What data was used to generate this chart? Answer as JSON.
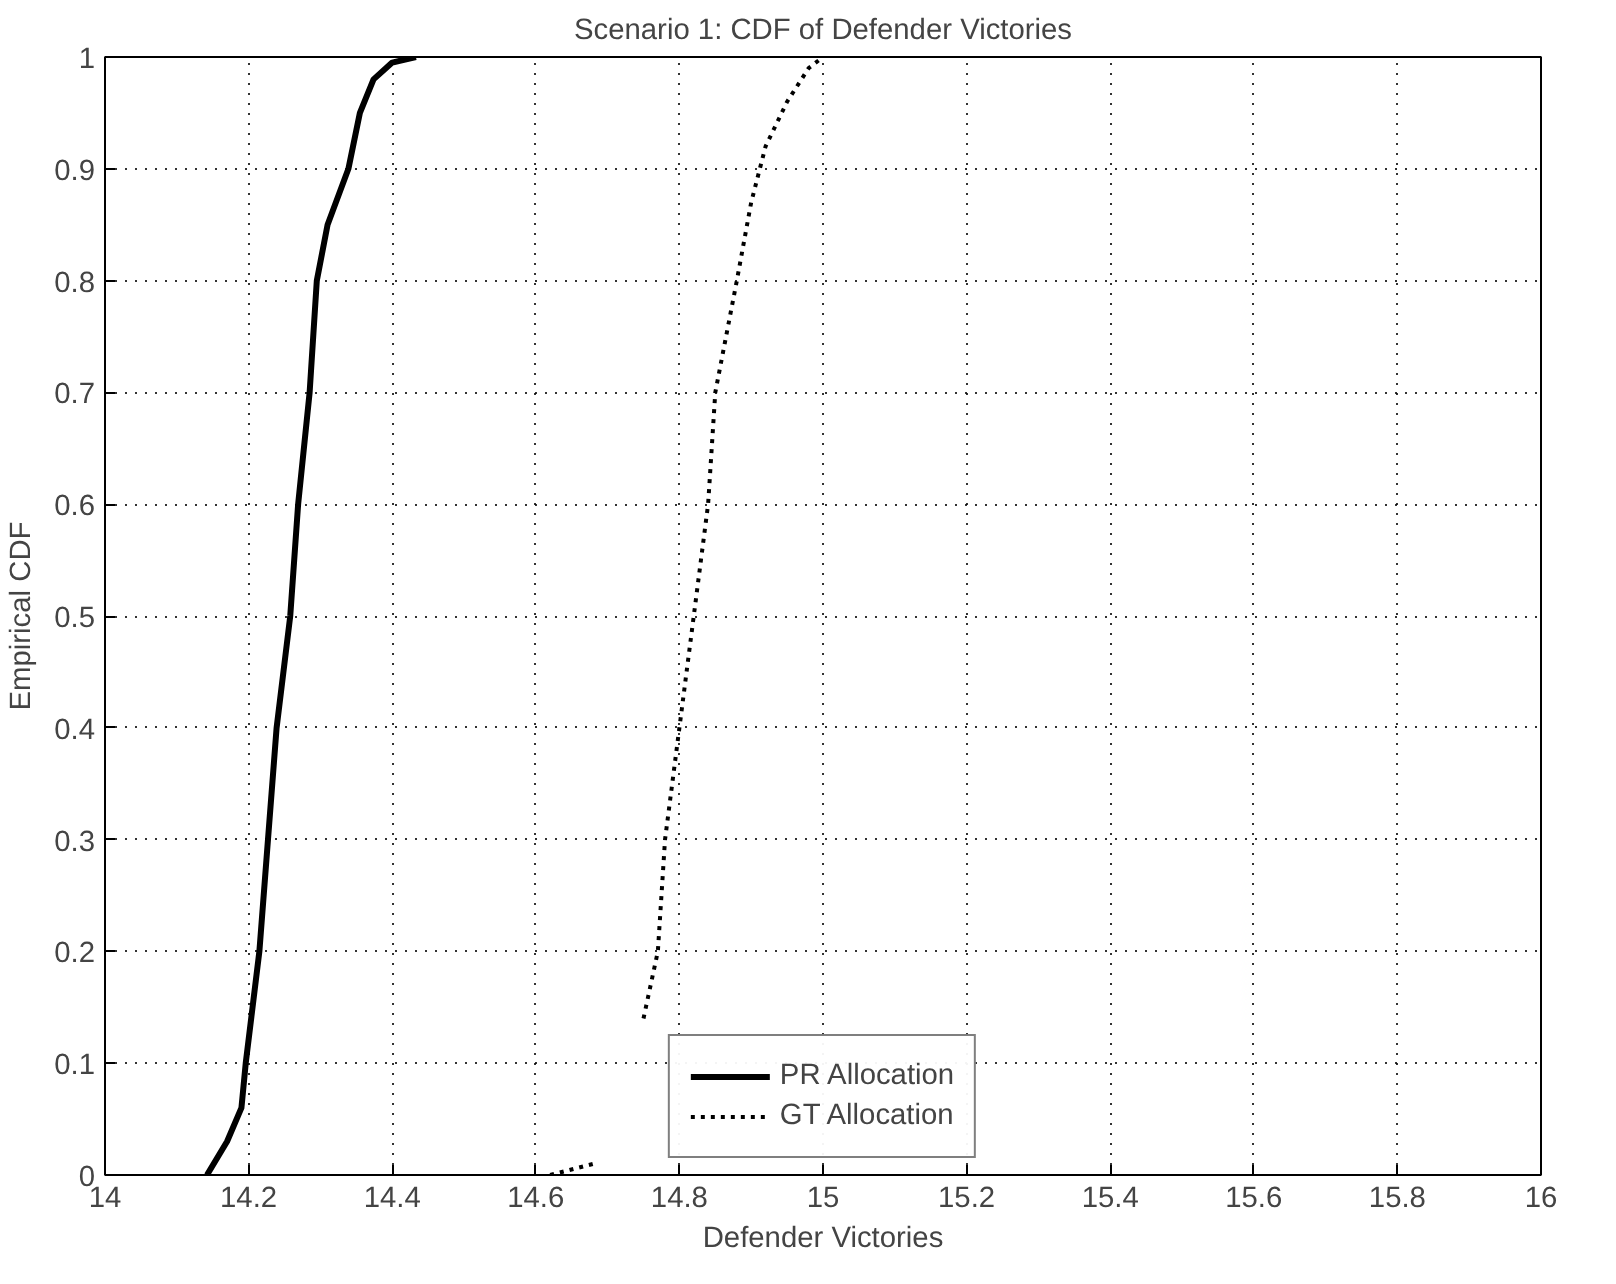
{
  "chart_data": {
    "type": "line",
    "title": "Scenario 1: CDF of Defender Victories",
    "xlabel": "Defender Victories",
    "ylabel": "Empirical CDF",
    "xlim": [
      14,
      16
    ],
    "xticks": [
      14,
      14.2,
      14.4,
      14.6,
      14.8,
      15,
      15.2,
      15.4,
      15.6,
      15.8,
      16
    ],
    "ylim": [
      0,
      1
    ],
    "yticks": [
      0,
      0.1,
      0.2,
      0.3,
      0.4,
      0.5,
      0.6,
      0.7,
      0.8,
      0.9,
      1
    ],
    "grid": true,
    "legend": "bottom",
    "marker": "none",
    "series": [
      {
        "name": "PR Allocation",
        "color": "#000000",
        "line_style": "solid",
        "x": [
          14.142,
          14.17,
          14.19,
          14.196,
          14.215,
          14.227,
          14.239,
          14.258,
          14.269,
          14.285,
          14.295,
          14.31,
          14.339,
          14.355,
          14.374,
          14.4,
          14.433
        ],
        "values": [
          0,
          0.03,
          0.06,
          0.1,
          0.2,
          0.3,
          0.4,
          0.5,
          0.6,
          0.7,
          0.8,
          0.85,
          0.9,
          0.95,
          0.98,
          0.995,
          1
        ]
      },
      {
        "name": "GT Allocation",
        "color": "#000000",
        "line_style": "dotted",
        "x": [
          14.62,
          14.68,
          14.7,
          14.75,
          14.77,
          14.78,
          14.8,
          14.82,
          14.84,
          14.85,
          14.88,
          14.9,
          14.92,
          14.95,
          14.98,
          15.0
        ],
        "values": [
          0,
          0.01,
          null,
          0.14,
          0.2,
          0.3,
          0.4,
          0.5,
          0.6,
          0.7,
          0.8,
          0.87,
          0.92,
          0.96,
          0.99,
          1
        ]
      }
    ]
  }
}
